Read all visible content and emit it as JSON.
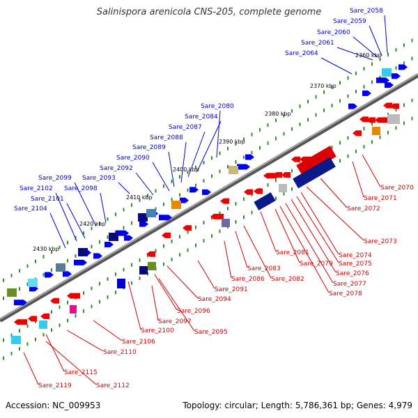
{
  "title": "Salinispora arenicola CNS-205, complete genome",
  "accession": "Accession: NC_009953",
  "summary": "Topology: circular; Length: 5,786,361 bp; Genes: 4,979",
  "colors": {
    "forward": "#0000ee",
    "reverse": "#ee0000",
    "backbone": "#777777",
    "tick": "#2e8b2e"
  },
  "kbp_ticks": [
    "2360 kbp",
    "2370 kbp",
    "2380 kbp",
    "2390 kbp",
    "2400 kbp",
    "2410 kbp",
    "2420 kbp",
    "2430 kbp"
  ],
  "forward_genes": [
    "Sare_2058",
    "Sare_2059",
    "Sare_2060",
    "Sare_2061",
    "Sare_2064",
    "Sare_2080",
    "Sare_2084",
    "Sare_2087",
    "Sare_2088",
    "Sare_2089",
    "Sare_2090",
    "Sare_2092",
    "Sare_2093",
    "Sare_2098",
    "Sare_2099",
    "Sare_2101",
    "Sare_2102",
    "Sare_2104"
  ],
  "reverse_genes": [
    "Sare_2070",
    "Sare_2071",
    "Sare_2072",
    "Sare_2073",
    "Sare_2074",
    "Sare_2075",
    "Sare_2076",
    "Sare_2077",
    "Sare_2078",
    "Sare_2079",
    "Sare_2081",
    "Sare_2082",
    "Sare_2083",
    "Sare_2086",
    "Sare_2091",
    "Sare_2094",
    "Sare_2095",
    "Sare_2096",
    "Sare_2097",
    "Sare_2100",
    "Sare_2106",
    "Sare_2110",
    "Sare_2112",
    "Sare_2115",
    "Sare_2119"
  ]
}
